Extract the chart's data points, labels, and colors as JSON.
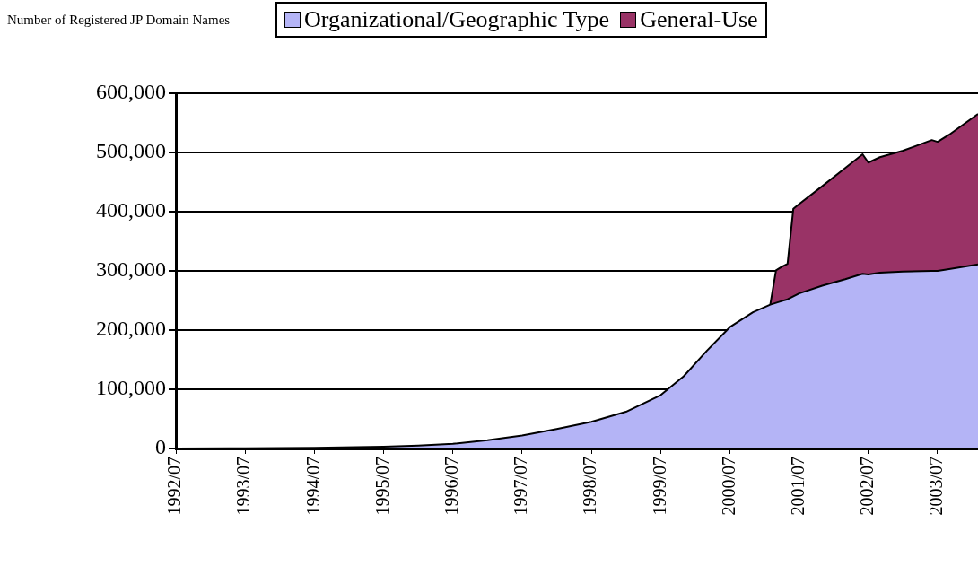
{
  "chart_data": {
    "type": "area",
    "ylabel": "Number of Registered JP Domain Names",
    "stacked": true,
    "legend": "top",
    "grid": "y",
    "x": [
      "1992-07",
      "1993-07",
      "1994-07",
      "1995-07",
      "1996-01",
      "1996-07",
      "1997-01",
      "1997-07",
      "1998-01",
      "1998-07",
      "1999-01",
      "1999-07",
      "1999-11",
      "2000-03",
      "2000-07",
      "2000-11",
      "2001-02",
      "2001-03",
      "2001-04",
      "2001-05",
      "2001-06",
      "2001-07",
      "2001-11",
      "2002-03",
      "2002-06",
      "2002-07",
      "2002-09",
      "2003-01",
      "2003-06",
      "2003-07",
      "2003-09",
      "2004-02"
    ],
    "xlim": [
      "1992-07",
      "2004-02"
    ],
    "xticks": [
      {
        "value": "1992-07",
        "label": "1992/07"
      },
      {
        "value": "1993-07",
        "label": "1993/07"
      },
      {
        "value": "1994-07",
        "label": "1994/07"
      },
      {
        "value": "1995-07",
        "label": "1995/07"
      },
      {
        "value": "1996-07",
        "label": "1996/07"
      },
      {
        "value": "1997-07",
        "label": "1997/07"
      },
      {
        "value": "1998-07",
        "label": "1998/07"
      },
      {
        "value": "1999-07",
        "label": "1999/07"
      },
      {
        "value": "2000-07",
        "label": "2000/07"
      },
      {
        "value": "2001-07",
        "label": "2001/07"
      },
      {
        "value": "2002-07",
        "label": "2002/07"
      },
      {
        "value": "2003-07",
        "label": "2003/07"
      }
    ],
    "ylim": [
      0,
      600000
    ],
    "yticks": [
      {
        "value": 0,
        "label": "0"
      },
      {
        "value": 100000,
        "label": "100,000"
      },
      {
        "value": 200000,
        "label": "200,000"
      },
      {
        "value": 300000,
        "label": "300,000"
      },
      {
        "value": 400000,
        "label": "400,000"
      },
      {
        "value": 500000,
        "label": "500,000"
      },
      {
        "value": 600000,
        "label": "600,000"
      }
    ],
    "series": [
      {
        "name": "Organizational/Geographic Type",
        "color": "#b4b4f6",
        "values": [
          0,
          300,
          1000,
          3000,
          5000,
          8000,
          14000,
          22000,
          33000,
          45000,
          62000,
          90000,
          122000,
          165000,
          205000,
          230000,
          243000,
          246000,
          249000,
          252000,
          257000,
          262000,
          275000,
          286000,
          295000,
          294000,
          297000,
          299000,
          300000,
          300000,
          303000,
          311000
        ]
      },
      {
        "name": "General-Use",
        "color": "#993366",
        "values": [
          null,
          null,
          null,
          null,
          null,
          null,
          null,
          null,
          null,
          null,
          null,
          null,
          null,
          null,
          null,
          null,
          0,
          55000,
          58000,
          60000,
          148000,
          151000,
          168000,
          188000,
          202000,
          189000,
          195000,
          204000,
          221000,
          218000,
          227000,
          254000
        ]
      }
    ]
  }
}
